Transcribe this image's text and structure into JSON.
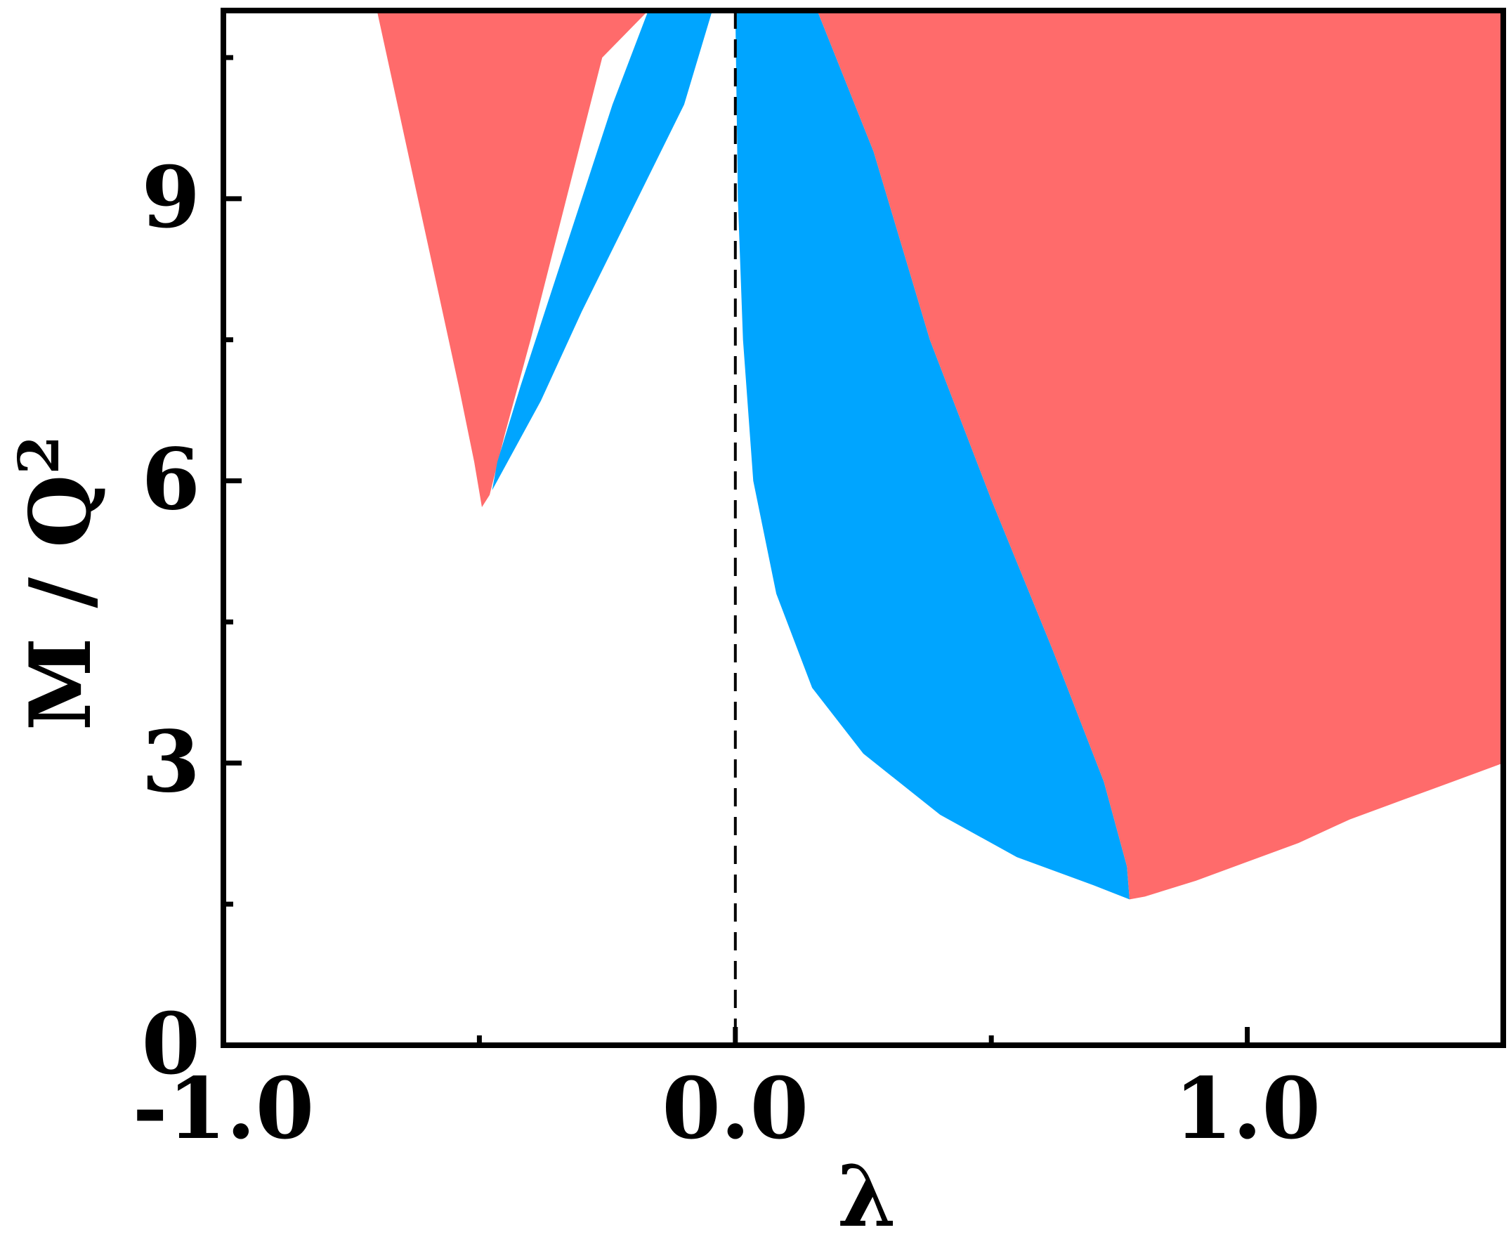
{
  "chart_data": {
    "type": "area",
    "xlabel": "λ",
    "ylabel": {
      "main": "M / Q",
      "superscript": "2"
    },
    "xlim": [
      -1.0,
      1.5
    ],
    "ylim": [
      0,
      11
    ],
    "x_ticks": [
      {
        "value": -1.0,
        "label": "-1.0"
      },
      {
        "value": 0.0,
        "label": "0.0"
      },
      {
        "value": 1.0,
        "label": "1.0"
      }
    ],
    "x_minor_ticks": [
      -0.5,
      0.5
    ],
    "y_ticks": [
      {
        "value": 0,
        "label": "0"
      },
      {
        "value": 3,
        "label": "3"
      },
      {
        "value": 6,
        "label": "6"
      },
      {
        "value": 9,
        "label": "9"
      }
    ],
    "y_minor_ticks": [
      1.5,
      4.5,
      7.5,
      10.5
    ],
    "reference_line": {
      "orientation": "vertical",
      "x": 0.0,
      "style": "dashed"
    },
    "colors": {
      "red": "#ff6b6b",
      "blue": "#00a5ff"
    },
    "regions": [
      {
        "color": "red",
        "boundary": [
          [
            -0.7,
            11.0
          ],
          [
            -0.66,
            10.0
          ],
          [
            -0.62,
            9.0
          ],
          [
            -0.58,
            8.0
          ],
          [
            -0.54,
            7.0
          ],
          [
            -0.51,
            6.2
          ],
          [
            -0.495,
            5.72
          ],
          [
            -0.48,
            5.85
          ],
          [
            -0.45,
            6.5
          ],
          [
            -0.4,
            7.5
          ],
          [
            -0.33,
            9.0
          ],
          [
            -0.26,
            10.5
          ],
          [
            -0.17,
            11.0
          ]
        ]
      },
      {
        "color": "blue",
        "boundary": [
          [
            -0.17,
            11.0
          ],
          [
            -0.24,
            10.0
          ],
          [
            -0.3,
            9.0
          ],
          [
            -0.36,
            8.0
          ],
          [
            -0.42,
            7.0
          ],
          [
            -0.465,
            6.2
          ],
          [
            -0.475,
            5.9
          ],
          [
            -0.45,
            6.15
          ],
          [
            -0.38,
            6.85
          ],
          [
            -0.3,
            7.8
          ],
          [
            -0.2,
            8.9
          ],
          [
            -0.1,
            10.0
          ],
          [
            -0.045,
            11.0
          ]
        ]
      },
      {
        "color": "blue",
        "boundary": [
          [
            0.0,
            11.0
          ],
          [
            0.005,
            9.0
          ],
          [
            0.015,
            7.5
          ],
          [
            0.035,
            6.0
          ],
          [
            0.08,
            4.8
          ],
          [
            0.15,
            3.8
          ],
          [
            0.25,
            3.1
          ],
          [
            0.4,
            2.45
          ],
          [
            0.55,
            2.0
          ],
          [
            0.7,
            1.7
          ],
          [
            0.77,
            1.55
          ],
          [
            0.765,
            1.9
          ],
          [
            0.72,
            2.8
          ],
          [
            0.62,
            4.2
          ],
          [
            0.5,
            5.8
          ],
          [
            0.38,
            7.5
          ],
          [
            0.27,
            9.5
          ],
          [
            0.16,
            11.0
          ]
        ]
      },
      {
        "color": "red",
        "boundary": [
          [
            0.16,
            11.0
          ],
          [
            0.27,
            9.5
          ],
          [
            0.38,
            7.5
          ],
          [
            0.5,
            5.8
          ],
          [
            0.62,
            4.2
          ],
          [
            0.72,
            2.8
          ],
          [
            0.765,
            1.9
          ],
          [
            0.77,
            1.55
          ],
          [
            0.8,
            1.58
          ],
          [
            0.9,
            1.75
          ],
          [
            1.0,
            1.95
          ],
          [
            1.1,
            2.15
          ],
          [
            1.2,
            2.4
          ],
          [
            1.3,
            2.6
          ],
          [
            1.4,
            2.8
          ],
          [
            1.5,
            3.0
          ],
          [
            1.5,
            11.0
          ]
        ]
      }
    ]
  }
}
